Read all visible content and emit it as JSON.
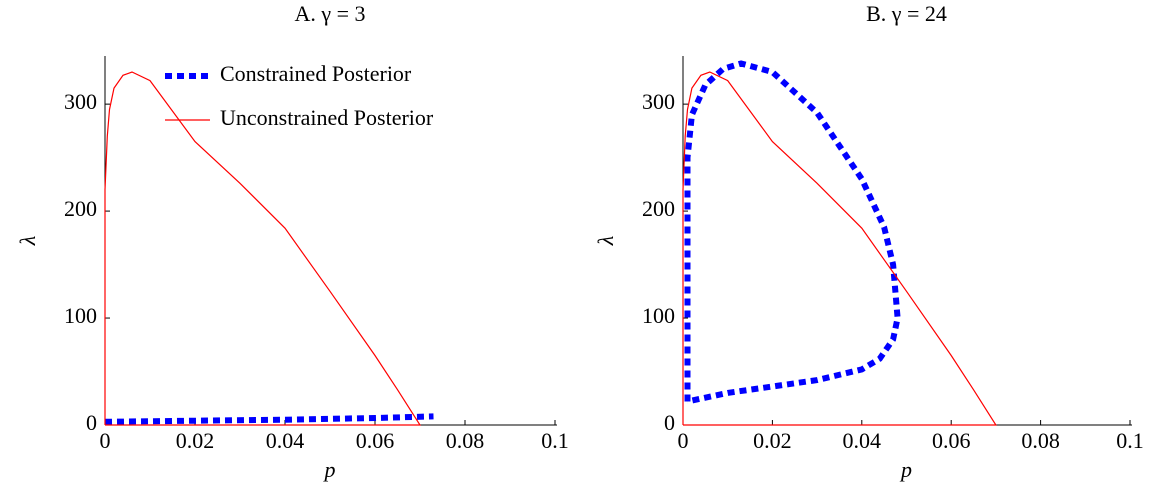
{
  "chart_data": [
    {
      "type": "line",
      "title": "A.  γ = 3",
      "x_label": "p",
      "y_label": "λ",
      "xlim": [
        0,
        0.1
      ],
      "ylim": [
        0,
        345
      ],
      "xticks": [
        0,
        0.02,
        0.04,
        0.06,
        0.08,
        0.1
      ],
      "yticks": [
        0,
        100,
        200,
        300
      ],
      "legend": "top-right",
      "series": [
        {
          "name": "Constrained Posterior",
          "color": "#0000ff",
          "style": "dashed",
          "x": [
            0,
            0.02,
            0.04,
            0.06,
            0.073
          ],
          "values": [
            3,
            4,
            5,
            6.5,
            8
          ]
        },
        {
          "name": "Unconstrained Posterior",
          "color": "#ff0000",
          "style": "solid",
          "x": [
            0,
            0,
            0.0005,
            0.001,
            0.002,
            0.004,
            0.006,
            0.01,
            0.02,
            0.03,
            0.04,
            0.05,
            0.06,
            0.065,
            0.07,
            0
          ],
          "values": [
            0,
            220,
            270,
            295,
            315,
            327,
            330,
            322,
            265,
            226,
            184,
            125,
            65,
            33,
            0,
            0
          ]
        }
      ]
    },
    {
      "type": "line",
      "title": "B.  γ = 24",
      "x_label": "p",
      "y_label": "λ",
      "xlim": [
        0,
        0.1
      ],
      "ylim": [
        0,
        345
      ],
      "xticks": [
        0,
        0.02,
        0.04,
        0.06,
        0.08,
        0.1
      ],
      "yticks": [
        0,
        100,
        200,
        300
      ],
      "series": [
        {
          "name": "Constrained Posterior",
          "color": "#0000ff",
          "style": "dashed",
          "x": [
            0.001,
            0.001,
            0.002,
            0.005,
            0.009,
            0.013,
            0.02,
            0.03,
            0.04,
            0.045,
            0.047,
            0.048,
            0.047,
            0.044,
            0.04,
            0.03,
            0.02,
            0.01,
            0.001
          ],
          "values": [
            22,
            250,
            290,
            318,
            333,
            338,
            330,
            292,
            230,
            185,
            150,
            100,
            80,
            62,
            52,
            42,
            36,
            30,
            22
          ]
        },
        {
          "name": "Unconstrained Posterior",
          "color": "#ff0000",
          "style": "solid",
          "x": [
            0,
            0,
            0.0005,
            0.001,
            0.002,
            0.004,
            0.006,
            0.01,
            0.02,
            0.03,
            0.04,
            0.05,
            0.06,
            0.065,
            0.07,
            0
          ],
          "values": [
            0,
            220,
            270,
            295,
            315,
            327,
            330,
            322,
            265,
            226,
            184,
            125,
            65,
            33,
            0,
            0
          ]
        }
      ]
    }
  ]
}
